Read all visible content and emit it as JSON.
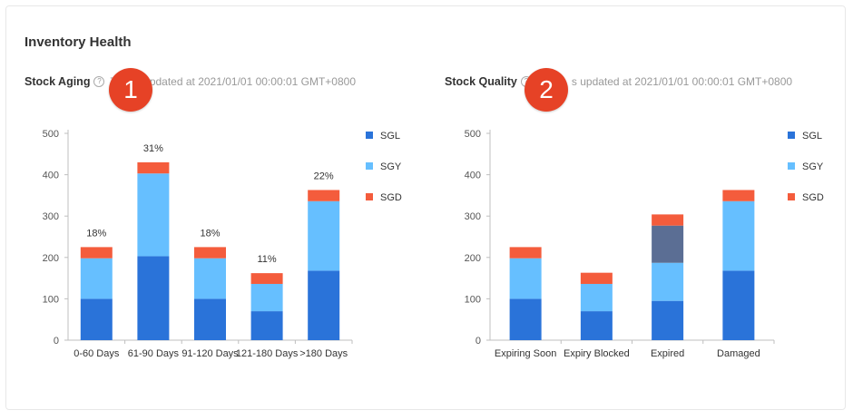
{
  "card_title": "Inventory Health",
  "colors": {
    "SGL": "#2a73d9",
    "SGY": "#66bfff",
    "SGD": "#f45c3c",
    "extra": "#5b6e94",
    "badge": "#e64226"
  },
  "stock_aging": {
    "title": "Stock Aging",
    "update_note": "T",
    "update_note_tail": "pdated at 2021/01/01 00:00:01 GMT+0800",
    "badge": "1"
  },
  "stock_quality": {
    "title": "Stock Quality",
    "update_note": "s updated at 2021/01/01 00:00:01 GMT+0800",
    "badge": "2"
  },
  "chart_data": [
    {
      "type": "bar",
      "stacked": true,
      "categories": [
        "0-60 Days",
        "61-90 Days",
        "91-120 Days",
        "121-180 Days",
        ">180 Days"
      ],
      "series": [
        {
          "name": "SGL",
          "values": [
            100,
            203,
            100,
            70,
            168
          ]
        },
        {
          "name": "SGY",
          "values": [
            98,
            200,
            98,
            66,
            168
          ]
        },
        {
          "name": "SGD",
          "values": [
            27,
            27,
            27,
            26,
            27
          ]
        }
      ],
      "data_labels": [
        "18%",
        "31%",
        "18%",
        "11%",
        "22%"
      ],
      "yticks": [
        0,
        100,
        200,
        300,
        400,
        500
      ],
      "ylim": [
        0,
        500
      ],
      "legend": [
        "SGL",
        "SGY",
        "SGD"
      ]
    },
    {
      "type": "bar",
      "stacked": true,
      "categories": [
        "Expiring Soon",
        "Expiry Blocked",
        "Expired",
        "Damaged"
      ],
      "series": [
        {
          "name": "SGL",
          "values": [
            100,
            70,
            95,
            168
          ]
        },
        {
          "name": "SGY",
          "values": [
            98,
            66,
            92,
            168
          ]
        },
        {
          "name": "",
          "values": [
            0,
            0,
            90,
            0
          ]
        },
        {
          "name": "SGD",
          "values": [
            27,
            27,
            27,
            27
          ]
        }
      ],
      "yticks": [
        0,
        100,
        200,
        300,
        400,
        500
      ],
      "ylim": [
        0,
        500
      ],
      "legend": [
        "SGL",
        "SGY",
        "SGD"
      ]
    }
  ]
}
